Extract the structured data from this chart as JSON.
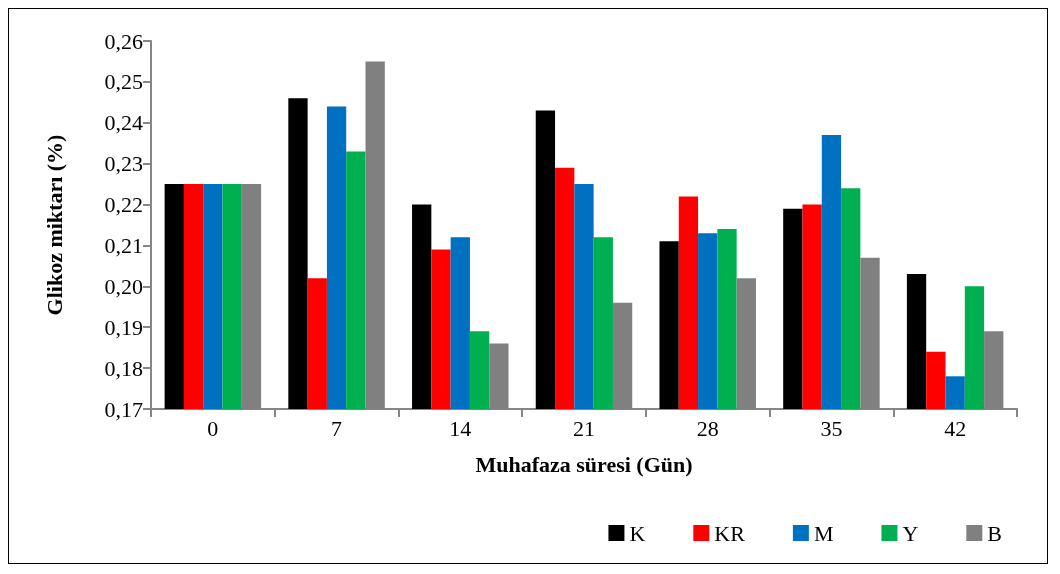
{
  "chart_data": {
    "type": "bar",
    "xlabel": "Muhafaza süresi (Gün)",
    "ylabel": "Glikoz miktarı (%)",
    "categories": [
      "0",
      "7",
      "14",
      "21",
      "28",
      "35",
      "42"
    ],
    "series": [
      {
        "name": "K",
        "color": "#000000",
        "values": [
          0.225,
          0.246,
          0.22,
          0.243,
          0.211,
          0.219,
          0.203
        ]
      },
      {
        "name": "KR",
        "color": "#ff0000",
        "values": [
          0.225,
          0.202,
          0.209,
          0.229,
          0.222,
          0.22,
          0.184
        ]
      },
      {
        "name": "M",
        "color": "#0070c0",
        "values": [
          0.225,
          0.244,
          0.212,
          0.225,
          0.213,
          0.237,
          0.178
        ]
      },
      {
        "name": "Y",
        "color": "#00b050",
        "values": [
          0.225,
          0.233,
          0.189,
          0.212,
          0.214,
          0.224,
          0.2
        ]
      },
      {
        "name": "B",
        "color": "#808080",
        "values": [
          0.225,
          0.255,
          0.186,
          0.196,
          0.202,
          0.207,
          0.189
        ]
      }
    ],
    "ylim": [
      0.17,
      0.26
    ],
    "yticks": [
      {
        "value": 0.17,
        "label": "0,17"
      },
      {
        "value": 0.18,
        "label": "0,18"
      },
      {
        "value": 0.19,
        "label": "0,19"
      },
      {
        "value": 0.2,
        "label": "0,20"
      },
      {
        "value": 0.21,
        "label": "0,21"
      },
      {
        "value": 0.22,
        "label": "0,22"
      },
      {
        "value": 0.23,
        "label": "0,23"
      },
      {
        "value": 0.24,
        "label": "0,24"
      },
      {
        "value": 0.25,
        "label": "0,25"
      },
      {
        "value": 0.26,
        "label": "0,26"
      }
    ],
    "grid": false,
    "legend": "bottom right"
  }
}
